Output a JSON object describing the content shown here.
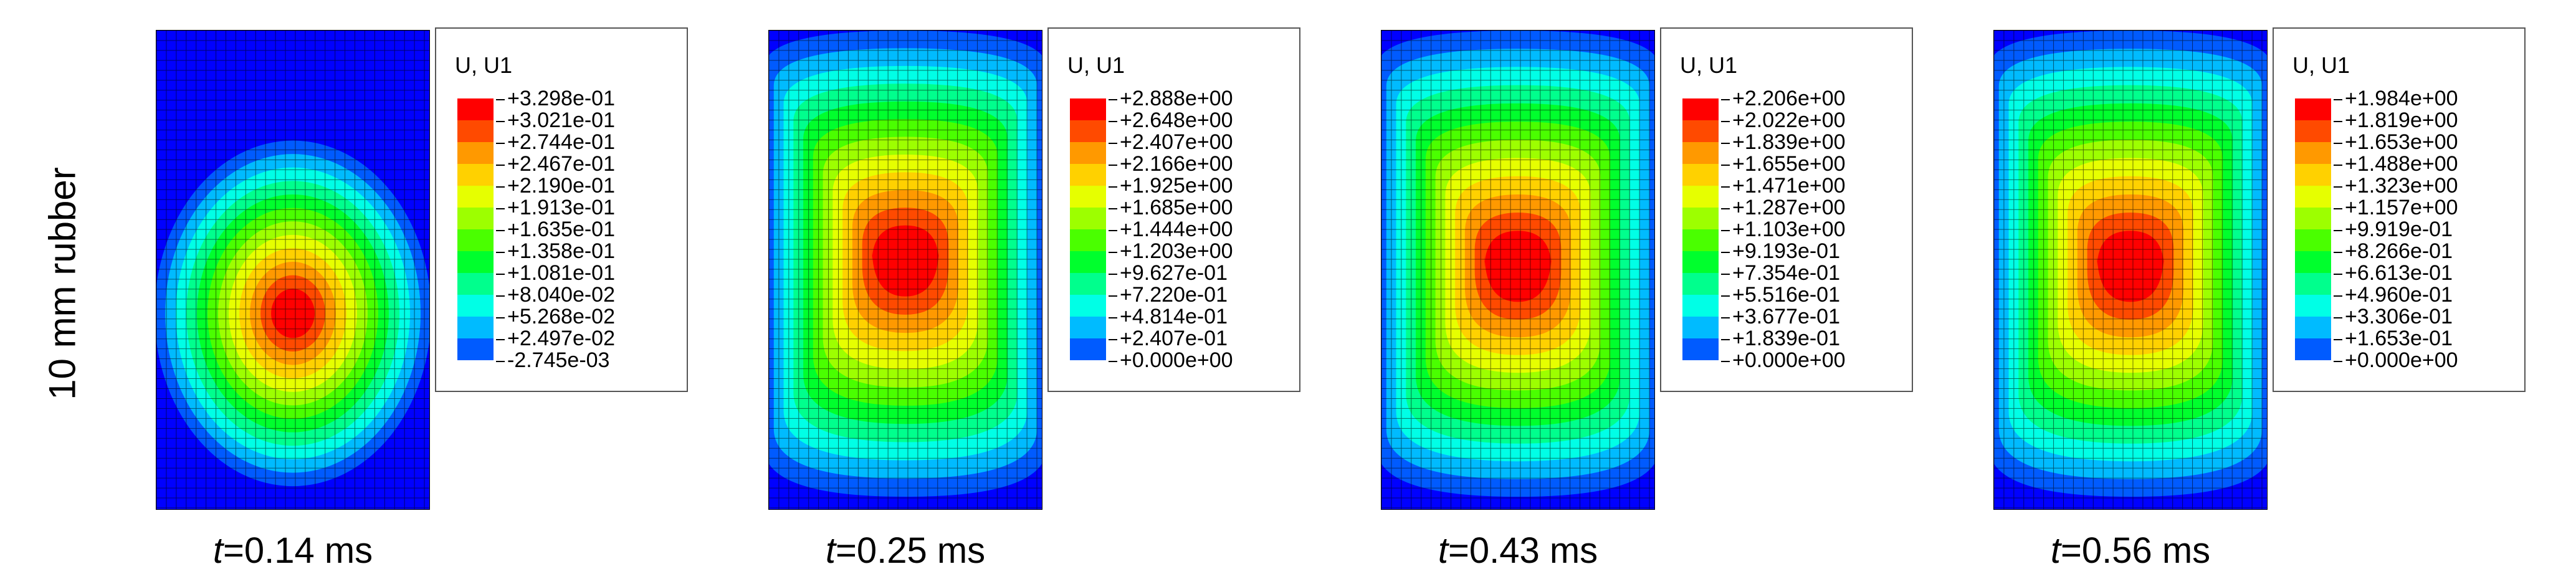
{
  "row_label": "10 mm rubber",
  "colors": [
    "#ff0000",
    "#ff4a00",
    "#ff9900",
    "#ffd100",
    "#e6ff00",
    "#9dff00",
    "#4aff00",
    "#00ff2d",
    "#00ff8d",
    "#00ffe6",
    "#00bbff",
    "#005bff",
    "#0000ff"
  ],
  "panels": [
    {
      "caption_t": "t",
      "caption_rest": "=0.14 ms",
      "legend_title": "U, U1",
      "legend_values": [
        "+3.298e-01",
        "+3.021e-01",
        "+2.744e-01",
        "+2.467e-01",
        "+2.190e-01",
        "+1.913e-01",
        "+1.635e-01",
        "+1.358e-01",
        "+1.081e-01",
        "+8.040e-02",
        "+5.268e-02",
        "+2.497e-02",
        "-2.745e-03"
      ]
    },
    {
      "caption_t": "t",
      "caption_rest": "=0.25 ms",
      "legend_title": "U, U1",
      "legend_values": [
        "+2.888e+00",
        "+2.648e+00",
        "+2.407e+00",
        "+2.166e+00",
        "+1.925e+00",
        "+1.685e+00",
        "+1.444e+00",
        "+1.203e+00",
        "+9.627e-01",
        "+7.220e-01",
        "+4.814e-01",
        "+2.407e-01",
        "+0.000e+00"
      ]
    },
    {
      "caption_t": "t",
      "caption_rest": "=0.43 ms",
      "legend_title": "U, U1",
      "legend_values": [
        "+2.206e+00",
        "+2.022e+00",
        "+1.839e+00",
        "+1.655e+00",
        "+1.471e+00",
        "+1.287e+00",
        "+1.103e+00",
        "+9.193e-01",
        "+7.354e-01",
        "+5.516e-01",
        "+3.677e-01",
        "+1.839e-01",
        "+0.000e+00"
      ]
    },
    {
      "caption_t": "t",
      "caption_rest": "=0.56 ms",
      "legend_title": "U, U1",
      "legend_values": [
        "+1.984e+00",
        "+1.819e+00",
        "+1.653e+00",
        "+1.488e+00",
        "+1.323e+00",
        "+1.157e+00",
        "+9.919e-01",
        "+8.266e-01",
        "+6.613e-01",
        "+4.960e-01",
        "+3.306e-01",
        "+1.653e-01",
        "+0.000e+00"
      ]
    }
  ]
}
